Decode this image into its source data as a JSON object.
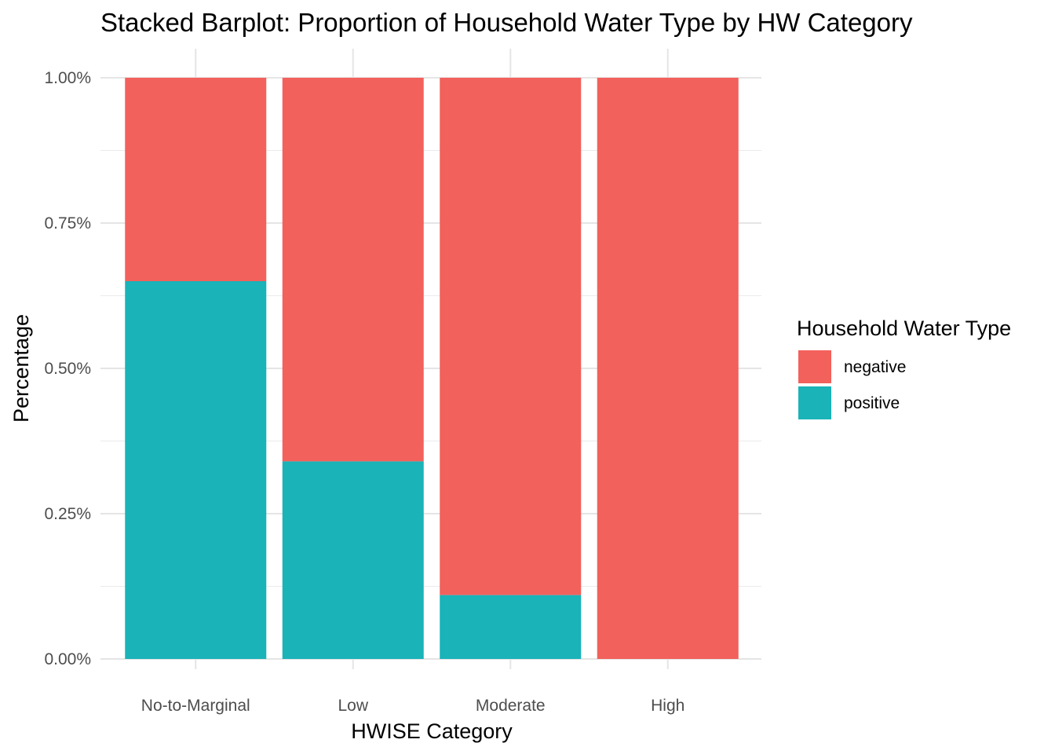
{
  "chart_data": {
    "type": "bar",
    "stacked": true,
    "title": "Stacked Barplot: Proportion of Household Water Type by HW Category",
    "xlabel": "HWISE Category",
    "ylabel": "Percentage",
    "categories": [
      "No-to-Marginal",
      "Low",
      "Moderate",
      "High"
    ],
    "ylim": [
      0,
      1
    ],
    "yticks": [
      0,
      0.25,
      0.5,
      0.75,
      1
    ],
    "ytick_labels": [
      "0.00%",
      "0.25%",
      "0.50%",
      "0.75%",
      "1.00%"
    ],
    "grid": true,
    "legend": {
      "title": "Household Water Type",
      "placement": "right"
    },
    "series": [
      {
        "name": "positive",
        "color": "#19B3B8",
        "values": [
          0.65,
          0.34,
          0.11,
          0.0
        ]
      },
      {
        "name": "negative",
        "color": "#F2615C",
        "values": [
          0.35,
          0.66,
          0.89,
          1.0
        ]
      }
    ],
    "legend_order": [
      "negative",
      "positive"
    ]
  }
}
